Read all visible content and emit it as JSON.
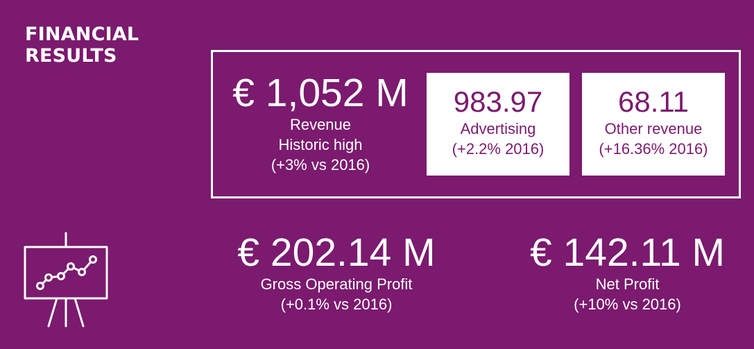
{
  "title": {
    "line1": "FINANCIAL",
    "line2": "RESULTS"
  },
  "revenue": {
    "value": "€ 1,052 M",
    "label": "Revenue",
    "note": "Historic high",
    "change": "(+3% vs 2016)"
  },
  "advertising": {
    "value": "983.97",
    "label": "Advertising",
    "change": "(+2.2% 2016)"
  },
  "other_revenue": {
    "value": "68.11",
    "label": "Other revenue",
    "change": "(+16.36% 2016)"
  },
  "gross_operating_profit": {
    "value": "€ 202.14 M",
    "label": "Gross Operating Profit",
    "change": "(+0.1% vs 2016)"
  },
  "net_profit": {
    "value": "€ 142.11 M",
    "label": "Net Profit",
    "change": "(+10% vs 2016)"
  },
  "icon": "presentation-chart-icon",
  "colors": {
    "background": "#7b1a6e",
    "foreground": "#ffffff"
  }
}
